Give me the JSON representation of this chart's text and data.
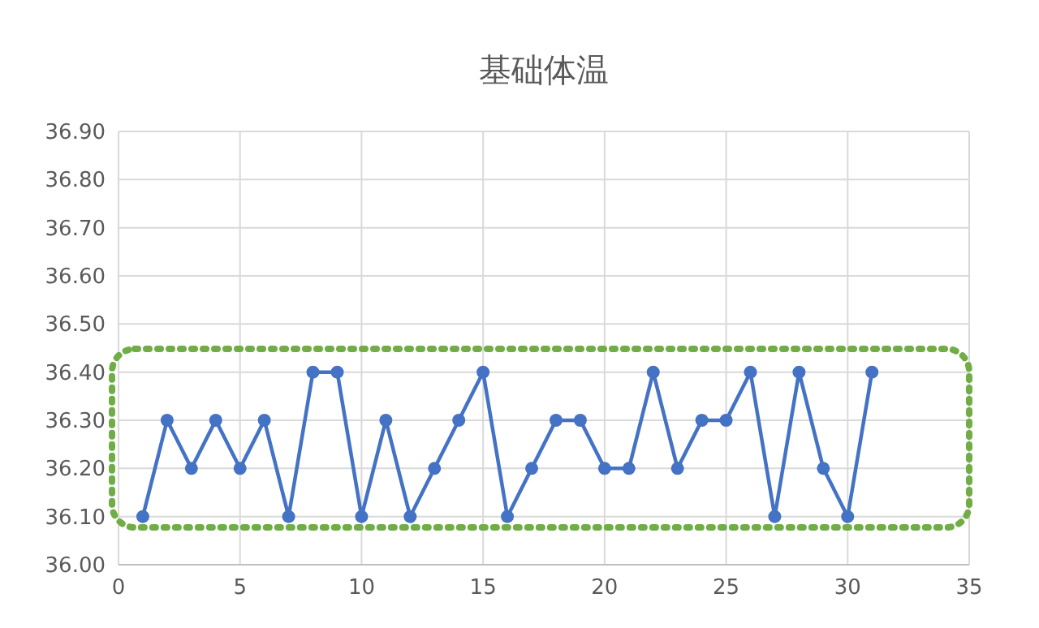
{
  "chart_data": {
    "type": "line",
    "title": "基础体温",
    "x": [
      1,
      2,
      3,
      4,
      5,
      6,
      7,
      8,
      9,
      10,
      11,
      12,
      13,
      14,
      15,
      16,
      17,
      18,
      19,
      20,
      21,
      22,
      23,
      24,
      25,
      26,
      27,
      28,
      29,
      30,
      31
    ],
    "series": [
      {
        "color": "#4472c4",
        "values": [
          36.1,
          36.3,
          36.2,
          36.3,
          36.2,
          36.3,
          36.1,
          36.4,
          36.4,
          36.1,
          36.3,
          36.1,
          36.2,
          36.3,
          36.4,
          36.1,
          36.2,
          36.3,
          36.3,
          36.2,
          36.2,
          36.4,
          36.2,
          36.3,
          36.3,
          36.4,
          36.1,
          36.4,
          36.2,
          36.1,
          36.4
        ]
      }
    ],
    "xlim": [
      0,
      35
    ],
    "xticks": [
      0,
      5,
      10,
      15,
      20,
      25,
      30,
      35
    ],
    "ylim": [
      36,
      36.9
    ],
    "yticks": [
      {
        "value": 36,
        "label": "36.00"
      },
      {
        "value": 36.1,
        "label": "36.10"
      },
      {
        "value": 36.2,
        "label": "36.20"
      },
      {
        "value": 36.3,
        "label": "36.30"
      },
      {
        "value": 36.4,
        "label": "36.40"
      },
      {
        "value": 36.5,
        "label": "36.50"
      },
      {
        "value": 36.6,
        "label": "36.60"
      },
      {
        "value": 36.7,
        "label": "36.70"
      },
      {
        "value": 36.8,
        "label": "36.80"
      },
      {
        "value": 36.9,
        "label": "36.90"
      }
    ],
    "grid": true,
    "marker": "circle",
    "line_style": "solid"
  }
}
